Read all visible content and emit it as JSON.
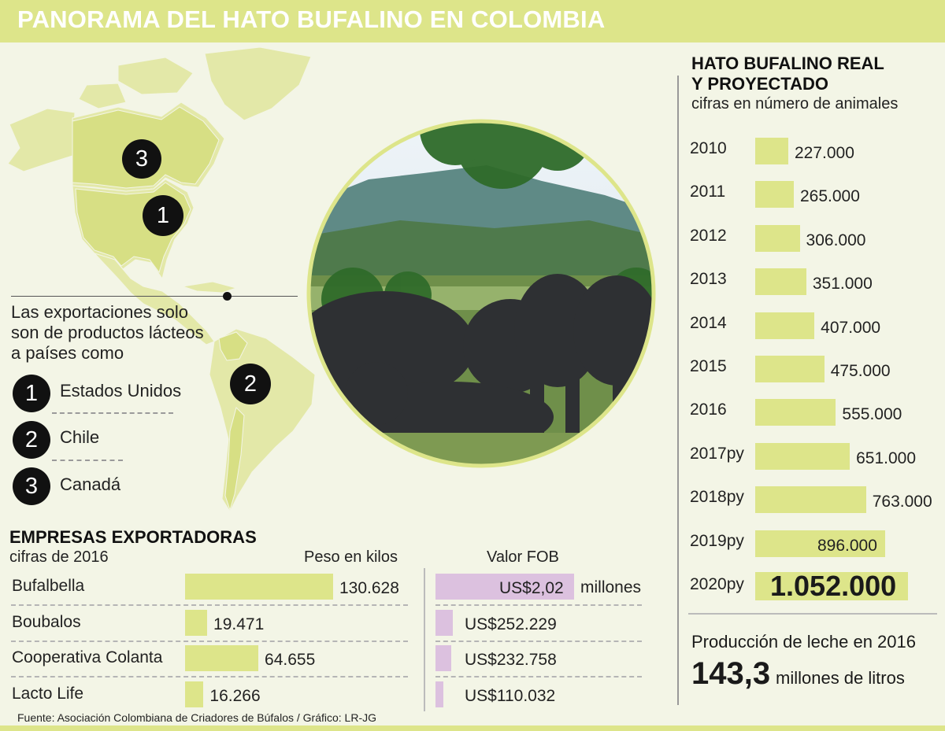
{
  "title": "PANORAMA DEL HATO BUFALINO EN COLOMBIA",
  "exports_note": "Las exportaciones solo son de productos lácteos a países como",
  "countries": [
    {
      "num": "1",
      "name": "Estados Unidos"
    },
    {
      "num": "2",
      "name": "Chile"
    },
    {
      "num": "3",
      "name": "Canadá"
    }
  ],
  "map_markers": [
    "3",
    "1",
    "2"
  ],
  "companies": {
    "title": "EMPRESAS EXPORTADORAS",
    "subtitle": "cifras de 2016",
    "col_weight": "Peso en kilos",
    "col_fob": "Valor FOB",
    "fob_unit": "millones",
    "rows": [
      {
        "name": "Bufalbella",
        "weight_label": "130.628",
        "fob_label": "US$2,02"
      },
      {
        "name": "Boubalos",
        "weight_label": "19.471",
        "fob_label": "US$252.229"
      },
      {
        "name": "Cooperativa Colanta",
        "weight_label": "64.655",
        "fob_label": "US$232.758"
      },
      {
        "name": "Lacto Life",
        "weight_label": "16.266",
        "fob_label": "US$110.032"
      }
    ]
  },
  "source": "Fuente: Asociación Colombiana de Criadores de Búfalos / Gráfico: LR-JG",
  "herd": {
    "title_line1": "HATO BUFALINO REAL",
    "title_line2": "Y PROYECTADO",
    "subtitle": "cifras en número de animales"
  },
  "milk": {
    "label": "Producción de leche en 2016",
    "value": "143,3",
    "unit": "millones de litros"
  },
  "colors": {
    "green_bar": "#dde58a",
    "pink_bar": "#dcc1df",
    "map_land": "#e3e8a8",
    "map_highlight": "#d7df84",
    "background": "#f3f5e6"
  },
  "chart_data": [
    {
      "type": "bar",
      "orientation": "horizontal",
      "title": "HATO BUFALINO REAL Y PROYECTADO",
      "subtitle": "cifras en número de animales",
      "categories": [
        "2010",
        "2011",
        "2012",
        "2013",
        "2014",
        "2015",
        "2016",
        "2017py",
        "2018py",
        "2019py",
        "2020py"
      ],
      "values": [
        227000,
        265000,
        306000,
        351000,
        407000,
        475000,
        555000,
        651000,
        763000,
        896000,
        1052000
      ],
      "value_labels": [
        "227.000",
        "265.000",
        "306.000",
        "351.000",
        "407.000",
        "475.000",
        "555.000",
        "651.000",
        "763.000",
        "896.000",
        "1.052.000"
      ],
      "xlim": [
        0,
        1052000
      ]
    },
    {
      "type": "bar",
      "orientation": "horizontal",
      "title": "Peso en kilos",
      "categories": [
        "Bufalbella",
        "Boubalos",
        "Cooperativa Colanta",
        "Lacto Life"
      ],
      "values": [
        130628,
        19471,
        64655,
        16266
      ],
      "xlim": [
        0,
        130628
      ]
    },
    {
      "type": "bar",
      "orientation": "horizontal",
      "title": "Valor FOB",
      "categories": [
        "Bufalbella",
        "Boubalos",
        "Cooperativa Colanta",
        "Lacto Life"
      ],
      "values": [
        2020000,
        252229,
        232758,
        110032
      ],
      "xlim": [
        0,
        2020000
      ]
    }
  ]
}
